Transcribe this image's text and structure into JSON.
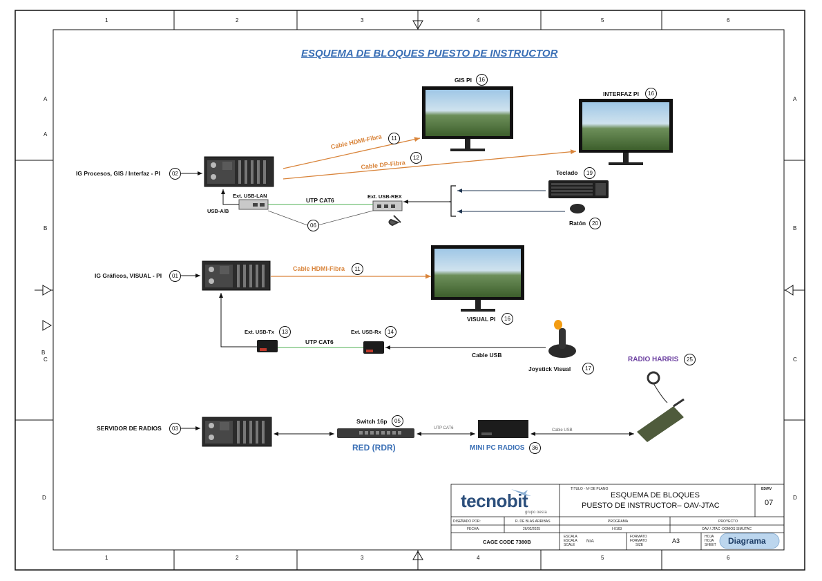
{
  "title": "ESQUEMA DE BLOQUES PUESTO DE INSTRUCTOR",
  "grid": {
    "columns": [
      "1",
      "2",
      "3",
      "4",
      "5",
      "6"
    ],
    "rows_left": [
      "A",
      "A",
      "B",
      "B",
      "C",
      "D"
    ],
    "rows_right": [
      "A",
      "B",
      "C",
      "D"
    ]
  },
  "blocks": {
    "ig_procesos": {
      "label": "IG Procesos, GIS / Interfaz - PI",
      "num": "02"
    },
    "ig_graficos": {
      "label": "IG Gráficos, VISUAL - PI",
      "num": "01"
    },
    "servidor": {
      "label": "SERVIDOR DE RADIOS",
      "num": "03"
    },
    "gis_pi": {
      "label": "GIS PI",
      "num": "16"
    },
    "interfaz_pi": {
      "label": "INTERFAZ PI",
      "num": "16"
    },
    "visual_pi": {
      "label": "VISUAL PI",
      "num": "16"
    },
    "teclado": {
      "label": "Teclado",
      "num": "19"
    },
    "raton": {
      "label": "Ratón",
      "num": "20"
    },
    "joystick": {
      "label": "Joystick Visual",
      "num": "17"
    },
    "radio": {
      "label": "RADIO HARRIS",
      "num": "25"
    },
    "switch": {
      "label": "Switch 16p",
      "num": "05"
    },
    "minipc": {
      "label": "MINI PC RADIOS",
      "num": "36"
    },
    "red": {
      "label": "RED (RDR)"
    },
    "usb_lan": {
      "label": "Ext. USB-LAN"
    },
    "usb_rex": {
      "label": "Ext. USB-REX"
    },
    "usb_tx": {
      "label": "Ext. USB-Tx",
      "num": "13"
    },
    "usb_rx": {
      "label": "Ext. USB-Rx",
      "num": "14"
    },
    "usb_ab": {
      "label": "USB-A/B"
    },
    "num_06": {
      "num": "06"
    }
  },
  "connections": {
    "hdmi1": {
      "label": "Cable HDMI-Fibra",
      "num": "11"
    },
    "dp": {
      "label": "Cable DP-Fibra",
      "num": "12"
    },
    "hdmi2": {
      "label": "Cable HDMI-Fibra",
      "num": "11"
    },
    "utp1": {
      "label": "UTP CAT6"
    },
    "utp2": {
      "label": "UTP CAT6"
    },
    "utp3": {
      "label": "UTP CAT6"
    },
    "usb_cable": {
      "label": "Cable USB"
    },
    "usb_cable_small": {
      "label": "Cable USB"
    }
  },
  "title_block": {
    "logo": "tecnobit",
    "logo_sub": "grupo oesía",
    "titulo_caption": "TITULO - Nº DE PLANO",
    "titulo_line1": "ESQUEMA DE BLOQUES",
    "titulo_line2": "PUESTO DE  INSTRUCTOR– OAV-JTAC",
    "edrv_caption": "ED/RV",
    "edrv_value": "07",
    "disenado_caption": "DISEÑADO POR:",
    "disenado_value": "R. DE BLAS ARRIBAS",
    "fecha_caption": "FECHA:",
    "fecha_value": "26/02/2025",
    "programa_caption": "PROGRAMA",
    "programa_value": "I-0163",
    "proyecto_caption": "PROYECTO",
    "proyecto_value": "OAV / JTAC -DOMOS SIMUTAC",
    "cage": "CAGE CODE 7380B",
    "escala_caption": "ESCALA",
    "escala_caption2": "ESCALA",
    "escala_caption3": "SCALE",
    "escala_value": "N/A",
    "formato_caption": "FORMATO",
    "formato_caption2": "FORMATO",
    "formato_caption3": "SIZE",
    "formato_value": "A3",
    "hoja_caption": "HOJA",
    "hoja_caption2": "HOJA",
    "hoja_caption3": "SHEET",
    "badge": "Diagrama"
  }
}
